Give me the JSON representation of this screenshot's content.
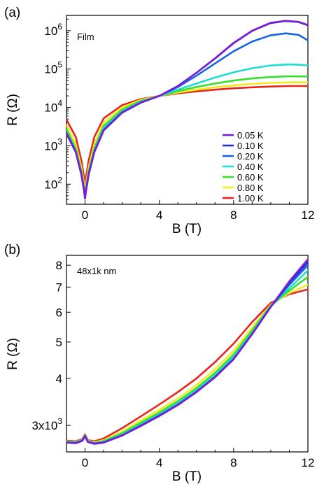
{
  "chart_data": [
    {
      "panel": "(a)",
      "type": "line",
      "annotation": "Film",
      "xlabel": "B (T)",
      "ylabel": "R (Ω)",
      "yscale": "log",
      "xlim": [
        -1,
        12
      ],
      "ylim": [
        30,
        2500000
      ],
      "xticks": [
        0,
        4,
        8,
        12
      ],
      "xtick_labels": [
        "0",
        "4",
        "8",
        "12"
      ],
      "yticks": [
        100,
        1000,
        10000,
        100000,
        1000000
      ],
      "ytick_labels": [
        {
          "base": "10",
          "exp": "2"
        },
        {
          "base": "10",
          "exp": "3"
        },
        {
          "base": "10",
          "exp": "4"
        },
        {
          "base": "10",
          "exp": "5"
        },
        {
          "base": "10",
          "exp": "6"
        }
      ],
      "legend_position": "bottom-right",
      "series": [
        {
          "name": "0.05 K",
          "color": "#7B1FD6",
          "x": [
            -1,
            -0.5,
            -0.2,
            -0.05,
            0,
            0.05,
            0.2,
            0.5,
            1,
            2,
            3,
            4,
            5,
            6,
            7,
            8,
            9,
            10,
            10.8,
            11.5,
            12
          ],
          "y": [
            2200,
            700,
            190,
            70,
            45,
            70,
            190,
            700,
            2600,
            7500,
            13500,
            20000,
            36000,
            80000,
            190000,
            480000,
            1000000,
            1600000,
            1800000,
            1700000,
            1400000
          ]
        },
        {
          "name": "0.10 K",
          "color": "#2A2ADB",
          "x": [
            -1,
            -0.5,
            -0.2,
            -0.05,
            0,
            0.05,
            0.2,
            0.5,
            1,
            2,
            3,
            4,
            5,
            6,
            7,
            8,
            9,
            10,
            10.8,
            11.5,
            12
          ],
          "y": [
            2100,
            690,
            185,
            68,
            43,
            68,
            185,
            690,
            2550,
            7400,
            13400,
            20000,
            36000,
            80000,
            188000,
            470000,
            990000,
            1580000,
            1780000,
            1680000,
            1380000
          ]
        },
        {
          "name": "0.20 K",
          "color": "#1565E0",
          "x": [
            -1,
            -0.5,
            -0.2,
            -0.05,
            0,
            0.05,
            0.2,
            0.5,
            1,
            2,
            3,
            4,
            5,
            6,
            7,
            8,
            9,
            10,
            10.8,
            11.5,
            12
          ],
          "y": [
            2050,
            680,
            180,
            66,
            42,
            66,
            180,
            680,
            2500,
            7300,
            13300,
            20000,
            34000,
            67000,
            140000,
            290000,
            520000,
            760000,
            850000,
            780000,
            560000
          ]
        },
        {
          "name": "0.40 K",
          "color": "#1FDDD0",
          "x": [
            -1,
            -0.5,
            -0.2,
            -0.05,
            0,
            0.05,
            0.2,
            0.5,
            1,
            2,
            3,
            4,
            5,
            6,
            7,
            8,
            9,
            10,
            11,
            12
          ],
          "y": [
            2300,
            750,
            200,
            72,
            45,
            72,
            200,
            750,
            2900,
            8000,
            14000,
            20000,
            29000,
            42000,
            60000,
            82000,
            105000,
            124000,
            132000,
            126000
          ]
        },
        {
          "name": "0.60 K",
          "color": "#33E02A",
          "x": [
            -1,
            -0.5,
            -0.2,
            -0.05,
            0,
            0.05,
            0.2,
            0.5,
            1,
            2,
            3,
            4,
            5,
            6,
            7,
            8,
            9,
            10,
            11,
            12
          ],
          "y": [
            2700,
            850,
            220,
            80,
            50,
            80,
            220,
            850,
            3300,
            8800,
            14800,
            20000,
            26500,
            34000,
            42000,
            50000,
            57000,
            62000,
            65000,
            64000
          ]
        },
        {
          "name": "0.80 K",
          "color": "#F2EC1F",
          "x": [
            -1,
            -0.5,
            -0.2,
            -0.05,
            0,
            0.05,
            0.2,
            0.5,
            1,
            2,
            3,
            4,
            5,
            6,
            7,
            8,
            9,
            10,
            11,
            12
          ],
          "y": [
            3500,
            1100,
            280,
            100,
            60,
            100,
            280,
            1100,
            4000,
            10000,
            15800,
            20000,
            24500,
            29000,
            33500,
            37500,
            41000,
            43500,
            45000,
            45000
          ]
        },
        {
          "name": "1.00 K",
          "color": "#E8241C",
          "x": [
            -1,
            -0.5,
            -0.2,
            -0.05,
            0,
            0.05,
            0.2,
            0.5,
            1,
            2,
            3,
            4,
            5,
            6,
            7,
            8,
            9,
            10,
            11,
            12
          ],
          "y": [
            4800,
            1700,
            420,
            150,
            90,
            150,
            420,
            1700,
            5200,
            11500,
            16500,
            20000,
            23200,
            26200,
            29000,
            31500,
            33500,
            35000,
            36000,
            36000
          ]
        }
      ]
    },
    {
      "panel": "(b)",
      "type": "line",
      "annotation": "48x1k nm",
      "xlabel": "B (T)",
      "ylabel": "R (Ω)",
      "yscale": "log",
      "xlim": [
        -1,
        12
      ],
      "ylim": [
        2550,
        8500
      ],
      "xticks": [
        0,
        4,
        8,
        12
      ],
      "xtick_labels": [
        "0",
        "4",
        "8",
        "12"
      ],
      "yticks": [
        3000,
        4000,
        5000,
        6000,
        7000,
        8000
      ],
      "ytick_labels": [
        {
          "base": "3x10",
          "exp": "3"
        },
        {
          "base": "4",
          "exp": ""
        },
        {
          "base": "5",
          "exp": ""
        },
        {
          "base": "6",
          "exp": ""
        },
        {
          "base": "7",
          "exp": ""
        },
        {
          "base": "8",
          "exp": ""
        }
      ],
      "series": [
        {
          "name": "0.05 K",
          "color": "#7B1FD6",
          "x": [
            -1,
            -0.5,
            -0.15,
            0,
            0.15,
            0.5,
            1,
            2,
            3,
            4,
            5,
            6,
            7,
            8,
            9,
            10,
            11,
            12
          ],
          "y": [
            2700,
            2690,
            2730,
            2810,
            2710,
            2680,
            2700,
            2820,
            2990,
            3180,
            3400,
            3680,
            4030,
            4500,
            5250,
            6200,
            7250,
            8300
          ]
        },
        {
          "name": "0.10 K",
          "color": "#2A2ADB",
          "x": [
            -1,
            -0.5,
            -0.15,
            0,
            0.15,
            0.5,
            1,
            2,
            3,
            4,
            5,
            6,
            7,
            8,
            9,
            10,
            11,
            12
          ],
          "y": [
            2700,
            2690,
            2730,
            2810,
            2710,
            2680,
            2700,
            2820,
            2990,
            3180,
            3400,
            3680,
            4030,
            4500,
            5250,
            6200,
            7200,
            8150
          ]
        },
        {
          "name": "0.20 K",
          "color": "#1565E0",
          "x": [
            -1,
            -0.5,
            -0.15,
            0,
            0.15,
            0.5,
            1,
            2,
            3,
            4,
            5,
            6,
            7,
            8,
            9,
            10,
            11,
            12
          ],
          "y": [
            2705,
            2695,
            2735,
            2815,
            2715,
            2685,
            2705,
            2825,
            3000,
            3190,
            3410,
            3690,
            4040,
            4510,
            5260,
            6200,
            7100,
            8000
          ]
        },
        {
          "name": "0.40 K",
          "color": "#1FDDD0",
          "x": [
            -1,
            -0.5,
            -0.15,
            0,
            0.15,
            0.5,
            1,
            2,
            3,
            4,
            5,
            6,
            7,
            8,
            9,
            10,
            11,
            12
          ],
          "y": [
            2710,
            2700,
            2740,
            2820,
            2720,
            2690,
            2715,
            2840,
            3020,
            3210,
            3440,
            3720,
            4080,
            4560,
            5300,
            6220,
            6950,
            7750
          ]
        },
        {
          "name": "0.60 K",
          "color": "#33E02A",
          "x": [
            -1,
            -0.5,
            -0.15,
            0,
            0.15,
            0.5,
            1,
            2,
            3,
            4,
            5,
            6,
            7,
            8,
            9,
            10,
            11,
            12
          ],
          "y": [
            2715,
            2705,
            2745,
            2825,
            2725,
            2695,
            2725,
            2860,
            3050,
            3250,
            3480,
            3770,
            4140,
            4630,
            5370,
            6250,
            6850,
            7450
          ]
        },
        {
          "name": "0.80 K",
          "color": "#F2EC1F",
          "x": [
            -1,
            -0.5,
            -0.15,
            0,
            0.15,
            0.5,
            1,
            2,
            3,
            4,
            5,
            6,
            7,
            8,
            9,
            10,
            11,
            12
          ],
          "y": [
            2720,
            2710,
            2750,
            2830,
            2730,
            2705,
            2740,
            2890,
            3090,
            3300,
            3540,
            3840,
            4230,
            4730,
            5460,
            6280,
            6750,
            7100
          ]
        },
        {
          "name": "1.00 K",
          "color": "#E8241C",
          "x": [
            -1,
            -0.5,
            -0.15,
            0,
            0.15,
            0.5,
            1,
            2,
            3,
            4,
            5,
            6,
            7,
            8,
            9,
            10,
            11,
            12
          ],
          "y": [
            2730,
            2720,
            2760,
            2840,
            2740,
            2720,
            2770,
            2950,
            3170,
            3410,
            3680,
            4000,
            4420,
            4950,
            5650,
            6350,
            6700,
            6900
          ]
        }
      ]
    }
  ]
}
